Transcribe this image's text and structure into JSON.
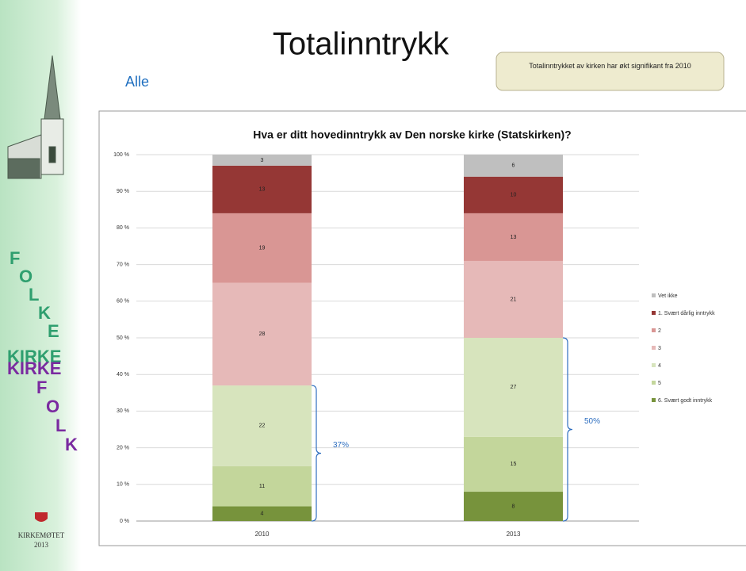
{
  "slide": {
    "title": "Totalinntrykk",
    "subtitle": "Alle",
    "note": "Totalinntrykket av kirken har økt signifikant fra 2010",
    "sidebar": {
      "word1": "FOLKE",
      "kirke1": "KIRKE",
      "kirke2": "KIRKE",
      "word2": "FOLK"
    },
    "logo": {
      "name": "KIRKEMØTET",
      "year": "2013"
    }
  },
  "chart_data": {
    "type": "bar",
    "stacked": true,
    "title": "Hva er ditt hovedinntrykk av Den norske kirke (Statskirken)?",
    "categories": [
      "2010",
      "2013"
    ],
    "series": [
      {
        "name": "6. Svært godt inntrykk",
        "color": "#77933c",
        "values": [
          4,
          8
        ]
      },
      {
        "name": "5",
        "color": "#c3d69b",
        "values": [
          11,
          15
        ]
      },
      {
        "name": "4",
        "color": "#d7e4bd",
        "values": [
          22,
          27
        ]
      },
      {
        "name": "3",
        "color": "#e6b9b8",
        "values": [
          28,
          21
        ]
      },
      {
        "name": "2",
        "color": "#d99694",
        "values": [
          19,
          13
        ]
      },
      {
        "name": "1. Svært dårlig inntrykk",
        "color": "#953735",
        "values": [
          13,
          10
        ]
      },
      {
        "name": "Vet ikke",
        "color": "#bfbfbf",
        "values": [
          3,
          6
        ]
      }
    ],
    "ylim": [
      0,
      100
    ],
    "yticks": [
      {
        "value": 0,
        "label": "0 %"
      },
      {
        "value": 10,
        "label": "10 %"
      },
      {
        "value": 20,
        "label": "20 %"
      },
      {
        "value": 30,
        "label": "30 %"
      },
      {
        "value": 40,
        "label": "40 %"
      },
      {
        "value": 50,
        "label": "50 %"
      },
      {
        "value": 60,
        "label": "60 %"
      },
      {
        "value": 70,
        "label": "70 %"
      },
      {
        "value": 80,
        "label": "80 %"
      },
      {
        "value": 90,
        "label": "90 %"
      },
      {
        "value": 100,
        "label": "100 %"
      }
    ],
    "grid": true,
    "legend": "right",
    "annotations": [
      "37%",
      "50%"
    ]
  }
}
